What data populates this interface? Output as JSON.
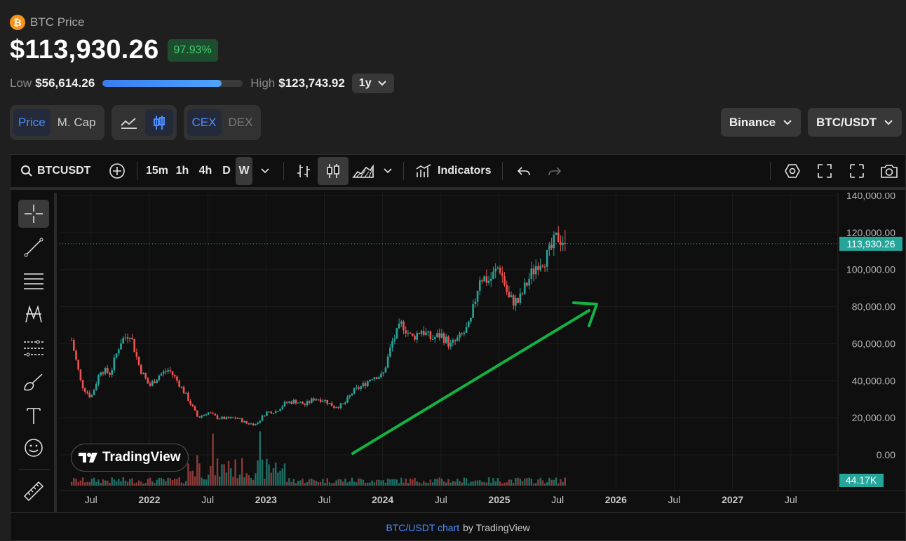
{
  "header": {
    "coin_icon": "bitcoin-icon",
    "coin_symbol": "₿",
    "coin_name": "BTC Price",
    "price": "$113,930.26",
    "change": "97.93%",
    "low_label": "Low",
    "low_value": "$56,614.26",
    "high_label": "High",
    "high_value": "$123,743.92",
    "range_fraction": 0.85,
    "period": "1y"
  },
  "toggles": {
    "price_label": "Price",
    "mcap_label": "M. Cap",
    "cex_label": "CEX",
    "dex_label": "DEX"
  },
  "selects": {
    "exchange": "Binance",
    "pair": "BTC/USDT"
  },
  "toolbar": {
    "symbol": "BTCUSDT",
    "intervals": [
      "15m",
      "1h",
      "4h",
      "D",
      "W"
    ],
    "active_interval": "W",
    "indicators_label": "Indicators"
  },
  "footer": {
    "link_text": "BTC/USDT chart",
    "by_text": "by TradingView"
  },
  "logo_text": "TradingView",
  "colors": {
    "up": "#26a69a",
    "down": "#ef5350",
    "arrow": "#14b143",
    "accent": "#4d8dff",
    "badge_green": "#3fcf6d"
  },
  "chart_data": {
    "type": "candlestick",
    "x_ticks": [
      "Jul",
      "2022",
      "Jul",
      "2023",
      "Jul",
      "2024",
      "Jul",
      "2025",
      "Jul",
      "2026",
      "Jul",
      "2027",
      "Jul"
    ],
    "y_ticks": [
      "140,000.00",
      "120,000.00",
      "100,000.00",
      "80,000.00",
      "60,000.00",
      "40,000.00",
      "20,000.00",
      "0.00"
    ],
    "ylim": [
      0,
      140000
    ],
    "last_price_label": "113,930.26",
    "last_price": 113930.26,
    "volume_label": "44.17K",
    "trend_arrow": "up",
    "price_path": [
      [
        "2021-05",
        62000
      ],
      [
        "2021-06",
        38000
      ],
      [
        "2021-07",
        31000
      ],
      [
        "2021-08",
        46000
      ],
      [
        "2021-09",
        44000
      ],
      [
        "2021-10",
        61000
      ],
      [
        "2021-11",
        66000
      ],
      [
        "2021-12",
        47000
      ],
      [
        "2022-01",
        37000
      ],
      [
        "2022-02",
        43000
      ],
      [
        "2022-03",
        46000
      ],
      [
        "2022-04",
        39000
      ],
      [
        "2022-05",
        30000
      ],
      [
        "2022-06",
        20000
      ],
      [
        "2022-07",
        23000
      ],
      [
        "2022-08",
        20000
      ],
      [
        "2022-09",
        19500
      ],
      [
        "2022-10",
        20000
      ],
      [
        "2022-11",
        17000
      ],
      [
        "2022-12",
        16500
      ],
      [
        "2023-01",
        23000
      ],
      [
        "2023-02",
        23500
      ],
      [
        "2023-03",
        28000
      ],
      [
        "2023-04",
        29000
      ],
      [
        "2023-05",
        27000
      ],
      [
        "2023-06",
        30500
      ],
      [
        "2023-07",
        29500
      ],
      [
        "2023-08",
        26000
      ],
      [
        "2023-09",
        27000
      ],
      [
        "2023-10",
        34500
      ],
      [
        "2023-11",
        37500
      ],
      [
        "2023-12",
        42500
      ],
      [
        "2024-01",
        42500
      ],
      [
        "2024-02",
        61000
      ],
      [
        "2024-03",
        71000
      ],
      [
        "2024-04",
        63000
      ],
      [
        "2024-05",
        67500
      ],
      [
        "2024-06",
        62500
      ],
      [
        "2024-07",
        65000
      ],
      [
        "2024-08",
        59000
      ],
      [
        "2024-09",
        63500
      ],
      [
        "2024-10",
        70000
      ],
      [
        "2024-11",
        96500
      ],
      [
        "2024-12",
        94000
      ],
      [
        "2025-01",
        102000
      ],
      [
        "2025-02",
        84000
      ],
      [
        "2025-03",
        82500
      ],
      [
        "2025-04",
        94500
      ],
      [
        "2025-05",
        104500
      ],
      [
        "2025-06",
        107000
      ],
      [
        "2025-07",
        118000
      ],
      [
        "2025-08",
        113930
      ]
    ]
  }
}
